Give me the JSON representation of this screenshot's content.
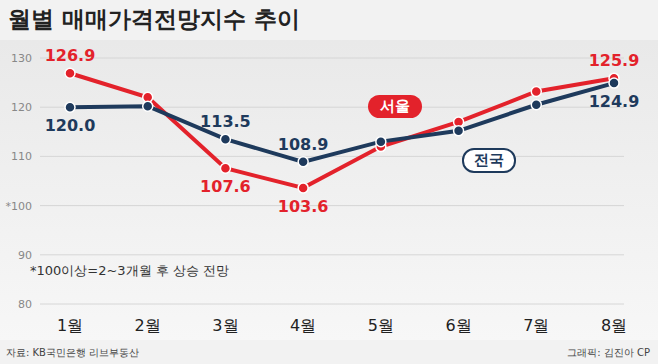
{
  "chart_data": {
    "type": "line",
    "title": "월별 매매가격전망지수 추이",
    "categories": [
      "1월",
      "2월",
      "3월",
      "4월",
      "5월",
      "6월",
      "7월",
      "8월"
    ],
    "series": [
      {
        "name": "서울",
        "color": "#e3222b",
        "values": [
          126.9,
          122.0,
          107.6,
          103.6,
          112.0,
          117.0,
          123.2,
          125.9
        ],
        "value_labels": [
          "126.9",
          null,
          "107.6",
          "103.6",
          null,
          null,
          null,
          "125.9"
        ]
      },
      {
        "name": "전국",
        "color": "#1e3a5c",
        "values": [
          120.0,
          120.2,
          113.5,
          108.9,
          113.0,
          115.2,
          120.5,
          124.9
        ],
        "value_labels": [
          "120.0",
          null,
          "113.5",
          "108.9",
          null,
          null,
          null,
          "124.9"
        ]
      }
    ],
    "ylim": [
      80,
      130
    ],
    "yticks": [
      80,
      90,
      {
        "value": 100,
        "label": "*100"
      },
      110,
      120,
      130
    ],
    "grid": true,
    "data_labels": true,
    "note": "*100이상=2~3개월 후 상승 전망",
    "source": "자료: KB국민은행 리브부동산",
    "credit": "그래픽: 김진아 CP"
  }
}
